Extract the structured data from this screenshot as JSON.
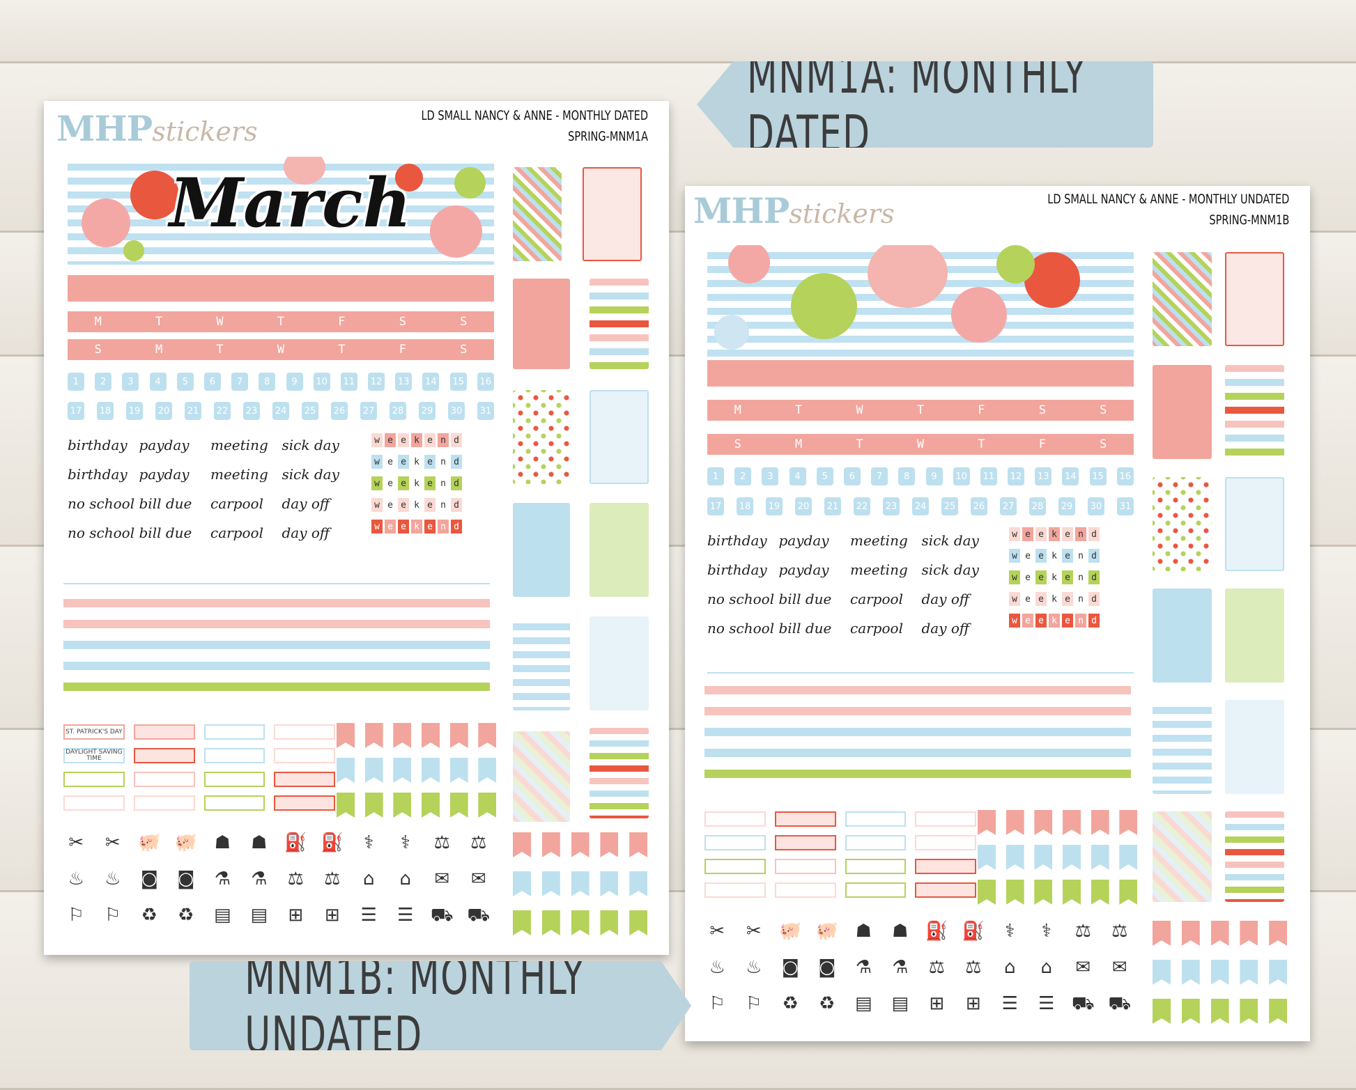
{
  "labels": {
    "dated": "MNM1A: MONTHLY DATED",
    "undated": "MNM1B: MONTHLY UNDATED"
  },
  "sheet_a": {
    "logo": {
      "mhp": "MHP",
      "stickers": "stickers"
    },
    "title": "LD SMALL NANCY & ANNE - MONTHLY DATED",
    "code": "SPRING-MNM1A",
    "month": "March",
    "weekdays_mon": [
      "M",
      "T",
      "W",
      "T",
      "F",
      "S",
      "S"
    ],
    "weekdays_sun": [
      "S",
      "M",
      "T",
      "W",
      "T",
      "F",
      "S"
    ],
    "dates_row1": [
      "1",
      "2",
      "3",
      "4",
      "5",
      "6",
      "7",
      "8",
      "9",
      "10",
      "11",
      "12",
      "13",
      "14",
      "15",
      "16"
    ],
    "dates_row2": [
      "17",
      "18",
      "19",
      "20",
      "21",
      "22",
      "23",
      "24",
      "25",
      "26",
      "27",
      "28",
      "29",
      "30",
      "31"
    ],
    "words": [
      "birthday",
      "payday",
      "meeting",
      "sick day",
      "birthday",
      "payday",
      "meeting",
      "sick day",
      "no school",
      "bill due",
      "carpool",
      "day off",
      "no school",
      "bill due",
      "carpool",
      "day off"
    ],
    "weekend": "weekend",
    "holiday_1": "ST. PATRICK'S DAY",
    "holiday_2": "DAYLIGHT SAVING TIME"
  },
  "sheet_b": {
    "logo": {
      "mhp": "MHP",
      "stickers": "stickers"
    },
    "title": "LD SMALL NANCY & ANNE - MONTHLY UNDATED",
    "code": "SPRING-MNM1B",
    "weekdays_mon": [
      "M",
      "T",
      "W",
      "T",
      "F",
      "S",
      "S"
    ],
    "weekdays_sun": [
      "S",
      "M",
      "T",
      "W",
      "T",
      "F",
      "S"
    ],
    "dates_row1": [
      "1",
      "2",
      "3",
      "4",
      "5",
      "6",
      "7",
      "8",
      "9",
      "10",
      "11",
      "12",
      "13",
      "14",
      "15",
      "16"
    ],
    "dates_row2": [
      "17",
      "18",
      "19",
      "20",
      "21",
      "22",
      "23",
      "24",
      "25",
      "26",
      "27",
      "28",
      "29",
      "30",
      "31"
    ],
    "words": [
      "birthday",
      "payday",
      "meeting",
      "sick day",
      "birthday",
      "payday",
      "meeting",
      "sick day",
      "no school",
      "bill due",
      "carpool",
      "day off",
      "no school",
      "bill due",
      "carpool",
      "day off"
    ],
    "weekend": "weekend"
  },
  "colors": {
    "pink": "#f2a59c",
    "blue": "#bde0ef",
    "green": "#b5d25a",
    "red": "#e9573f",
    "lightpink": "#fbd9d3"
  },
  "icons": [
    "scissors-comb-icon",
    "scissors-comb-icon",
    "piggy-bank-icon",
    "piggy-bank-icon",
    "tooth-icon",
    "tooth-icon",
    "gas-pump-icon",
    "gas-pump-icon",
    "stethoscope-icon",
    "stethoscope-icon",
    "dumbbell-icon",
    "dumbbell-icon",
    "cake-icon",
    "cake-icon",
    "washer-icon",
    "washer-icon",
    "pills-icon",
    "pills-icon",
    "scale-icon",
    "scale-icon",
    "luggage-icon",
    "luggage-icon",
    "envelope-icon",
    "envelope-icon",
    "sneaker-icon",
    "sneaker-icon",
    "trash-can-icon",
    "trash-can-icon",
    "book-icon",
    "book-icon",
    "package-icon",
    "package-icon",
    "bill-icon",
    "bill-icon",
    "cart-icon",
    "cart-icon"
  ]
}
